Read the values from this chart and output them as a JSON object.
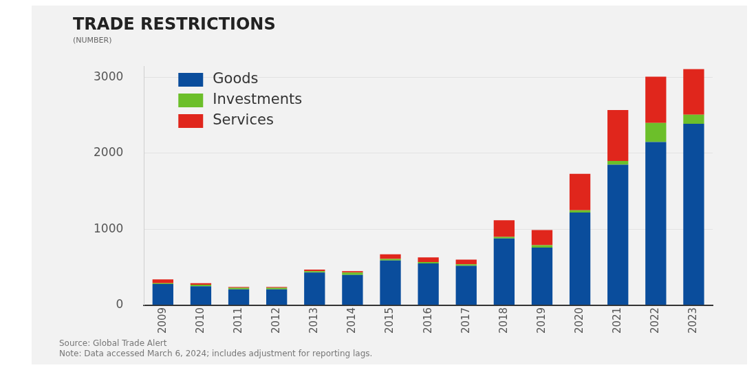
{
  "chart_data": {
    "type": "bar",
    "title": "TRADE RESTRICTIONS",
    "subtitle": "(NUMBER)",
    "categories": [
      "2009",
      "2010",
      "2011",
      "2012",
      "2013",
      "2014",
      "2015",
      "2016",
      "2017",
      "2018",
      "2019",
      "2020",
      "2021",
      "2022",
      "2023"
    ],
    "series": [
      {
        "name": "Goods",
        "color": "#0a4d9c",
        "values": [
          280,
          250,
          210,
          210,
          430,
          400,
          590,
          550,
          520,
          880,
          760,
          1220,
          1850,
          2150,
          2390
        ]
      },
      {
        "name": "Investments",
        "color": "#6cbf2a",
        "values": [
          10,
          20,
          20,
          20,
          20,
          30,
          20,
          20,
          20,
          20,
          30,
          30,
          50,
          250,
          120
        ]
      },
      {
        "name": "Services",
        "color": "#e0261c",
        "values": [
          50,
          20,
          10,
          10,
          20,
          20,
          60,
          60,
          60,
          220,
          200,
          480,
          670,
          610,
          600
        ]
      }
    ],
    "stacked": true,
    "ylim": [
      0,
      3150
    ],
    "yticks": [
      0,
      1000,
      2000,
      3000
    ],
    "grid": "y",
    "legend": "top left",
    "annotations": [
      "Source: Global Trade Alert",
      "Note: Data accessed March 6, 2024; includes adjustment for reporting lags."
    ]
  }
}
